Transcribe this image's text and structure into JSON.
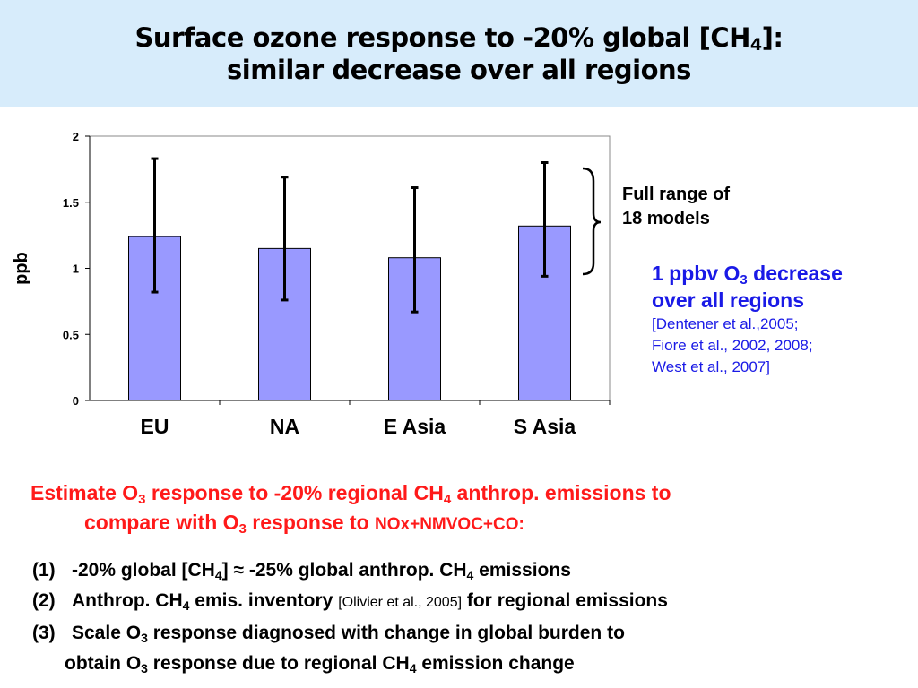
{
  "header": {
    "title_line1_a": "Surface ozone response to -20% global [CH",
    "title_line1_sub": "4",
    "title_line1_b": "]:",
    "title_line2": "similar decrease over all regions"
  },
  "chart_data": {
    "type": "bar",
    "categories": [
      "EU",
      "NA",
      "E Asia",
      "S Asia"
    ],
    "values": [
      1.24,
      1.15,
      1.08,
      1.32
    ],
    "error_low": [
      0.82,
      0.76,
      0.67,
      0.94
    ],
    "error_high": [
      1.83,
      1.69,
      1.61,
      1.8
    ],
    "ylabel": "ppb",
    "ylim": [
      0,
      2
    ],
    "yticks": [
      "0",
      "0.5",
      "1",
      "1.5",
      "2"
    ],
    "grid": false,
    "legend": "none",
    "bar_color": "#9999ff",
    "bar_stroke": "#000000"
  },
  "annotations": {
    "range_line1": "Full range of",
    "range_line2": "18 models",
    "blue_line1_a": "1 ppbv O",
    "blue_line1_sub": "3",
    "blue_line1_b": " decrease",
    "blue_line2": "over all regions",
    "ref_line1": "[Dentener et al.,2005;",
    "ref_line2": "Fiore et al., 2002, 2008;",
    "ref_line3": "West et al., 2007]",
    "blue_color": "#1a1ae6"
  },
  "estimate": {
    "a": "Estimate O",
    "sub1": "3",
    "b": " response to -20% regional CH",
    "sub2": "4",
    "c": " anthrop. emissions to",
    "d": "compare with O",
    "sub3": "3",
    "e": " response to ",
    "f": "NOx+NMVOC+CO:",
    "color": "#ff1a1a"
  },
  "steps": {
    "s1_num": "(1)",
    "s1_a": "-20% global [CH",
    "s1_sub": "4",
    "s1_b": "]  ≈ -25% global anthrop. CH",
    "s1_sub2": "4",
    "s1_c": " emissions",
    "s2_num": "(2)",
    "s2_a": "Anthrop. CH",
    "s2_sub": "4",
    "s2_b": " emis. inventory ",
    "s2_ref": "[Olivier et al., 2005]",
    "s2_c": " for regional emissions",
    "s3_num": "(3)",
    "s3_a": "Scale O",
    "s3_sub": "3",
    "s3_b": " response diagnosed with change in global burden to",
    "s3_c": "obtain O",
    "s3_sub2": "3",
    "s3_d": " response due to regional CH",
    "s3_sub3": "4",
    "s3_e": " emission change"
  }
}
